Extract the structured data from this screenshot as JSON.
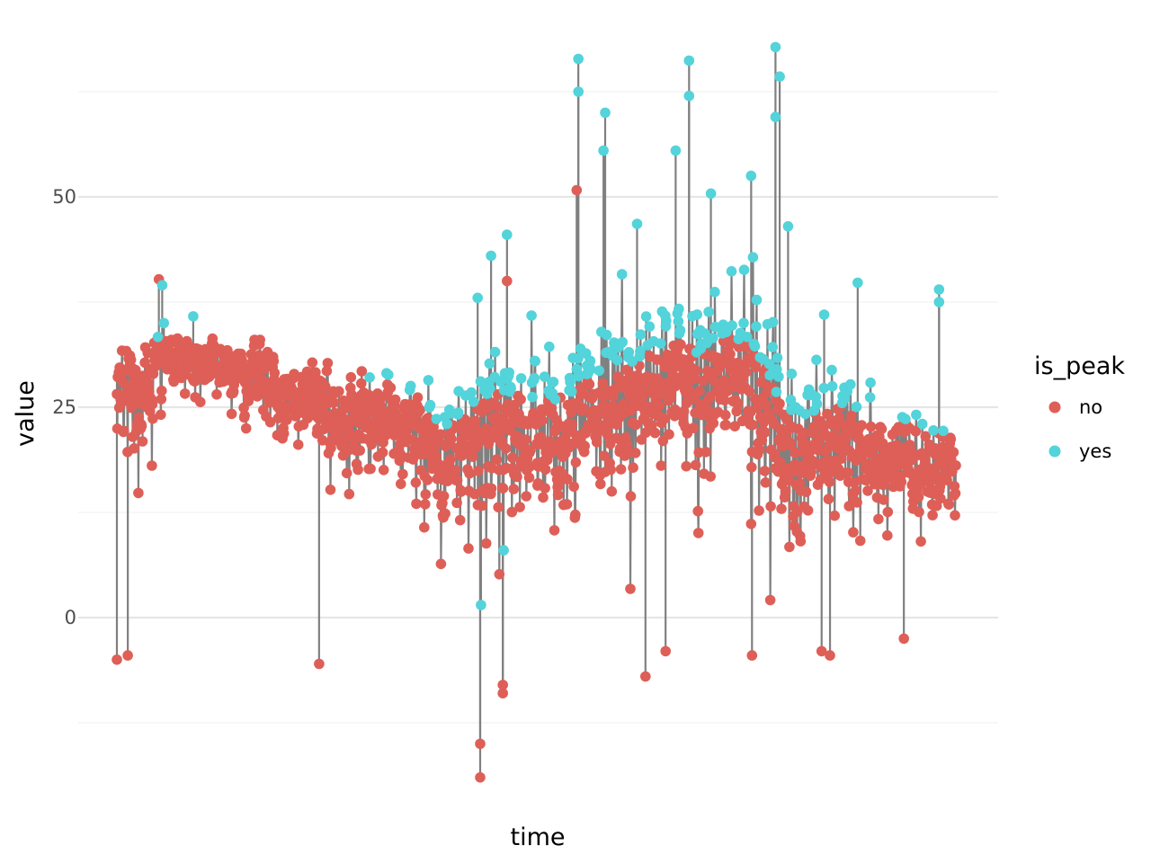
{
  "chart_data": {
    "type": "line+scatter",
    "title": "",
    "xlabel": "time",
    "ylabel": "value",
    "ylim": [
      -25,
      70
    ],
    "y_ticks": [
      0,
      25,
      50
    ],
    "y_tick_labels": [
      "0",
      "25",
      "50"
    ],
    "x_tick_labels": [],
    "grid": true,
    "legend": {
      "title": "is_peak",
      "placement": "right",
      "entries": [
        {
          "label": "no",
          "color": "#DE5F57"
        },
        {
          "label": "yes",
          "color": "#53D3DA"
        }
      ]
    },
    "line_color": "#808080",
    "series": [
      {
        "name": "value",
        "x_extent": [
          0,
          1
        ],
        "trend": [
          [
            0.0,
            28,
            14
          ],
          [
            0.03,
            27,
            14
          ],
          [
            0.05,
            31,
            4
          ],
          [
            0.12,
            30,
            5
          ],
          [
            0.2,
            27,
            6
          ],
          [
            0.3,
            24,
            7
          ],
          [
            0.36,
            22,
            8
          ],
          [
            0.4,
            19,
            11
          ],
          [
            0.43,
            21,
            11
          ],
          [
            0.5,
            22,
            10
          ],
          [
            0.55,
            24,
            11
          ],
          [
            0.6,
            27,
            12
          ],
          [
            0.63,
            27,
            13
          ],
          [
            0.68,
            30,
            12
          ],
          [
            0.72,
            31,
            12
          ],
          [
            0.76,
            27,
            14
          ],
          [
            0.8,
            18,
            15
          ],
          [
            0.85,
            21,
            11
          ],
          [
            0.9,
            19,
            8
          ],
          [
            1.0,
            18,
            7
          ]
        ],
        "spikes": [
          {
            "x": 0.05,
            "value": 40.2,
            "is_peak": "no"
          },
          {
            "x": 0.054,
            "value": 39.5,
            "is_peak": "yes"
          },
          {
            "x": 0.056,
            "value": 35,
            "is_peak": "yes"
          },
          {
            "x": 0.091,
            "value": 35.8,
            "is_peak": "yes"
          },
          {
            "x": 0.43,
            "value": 38,
            "is_peak": "yes"
          },
          {
            "x": 0.446,
            "value": 43,
            "is_peak": "yes"
          },
          {
            "x": 0.465,
            "value": 45.5,
            "is_peak": "yes"
          },
          {
            "x": 0.465,
            "value": 40,
            "is_peak": "no"
          },
          {
            "x": 0.55,
            "value": 66.4,
            "is_peak": "yes"
          },
          {
            "x": 0.55,
            "value": 62.5,
            "is_peak": "yes"
          },
          {
            "x": 0.548,
            "value": 50.8,
            "is_peak": "no"
          },
          {
            "x": 0.582,
            "value": 60,
            "is_peak": "yes"
          },
          {
            "x": 0.58,
            "value": 55.5,
            "is_peak": "yes"
          },
          {
            "x": 0.62,
            "value": 46.8,
            "is_peak": "yes"
          },
          {
            "x": 0.666,
            "value": 55.5,
            "is_peak": "yes"
          },
          {
            "x": 0.682,
            "value": 66.2,
            "is_peak": "yes"
          },
          {
            "x": 0.682,
            "value": 62,
            "is_peak": "yes"
          },
          {
            "x": 0.708,
            "value": 50.4,
            "is_peak": "yes"
          },
          {
            "x": 0.756,
            "value": 52.5,
            "is_peak": "yes"
          },
          {
            "x": 0.785,
            "value": 67.8,
            "is_peak": "yes"
          },
          {
            "x": 0.79,
            "value": 64.3,
            "is_peak": "yes"
          },
          {
            "x": 0.785,
            "value": 59.5,
            "is_peak": "yes"
          },
          {
            "x": 0.8,
            "value": 46.5,
            "is_peak": "yes"
          },
          {
            "x": 0.843,
            "value": 36,
            "is_peak": "yes"
          },
          {
            "x": 0.883,
            "value": 39.8,
            "is_peak": "yes"
          },
          {
            "x": 0.98,
            "value": 39,
            "is_peak": "yes"
          },
          {
            "x": 0.98,
            "value": 37.5,
            "is_peak": "yes"
          },
          {
            "x": 0.433,
            "value": -19,
            "is_peak": "no"
          },
          {
            "x": 0.433,
            "value": -15,
            "is_peak": "no"
          },
          {
            "x": 0.46,
            "value": -9,
            "is_peak": "no"
          },
          {
            "x": 0.46,
            "value": -8,
            "is_peak": "no"
          },
          {
            "x": 0.0,
            "value": -5,
            "is_peak": "no"
          },
          {
            "x": 0.013,
            "value": -4.5,
            "is_peak": "no"
          },
          {
            "x": 0.241,
            "value": -5.5,
            "is_peak": "no"
          },
          {
            "x": 0.63,
            "value": -7,
            "is_peak": "no"
          },
          {
            "x": 0.654,
            "value": -4,
            "is_peak": "no"
          },
          {
            "x": 0.757,
            "value": -4.5,
            "is_peak": "no"
          },
          {
            "x": 0.84,
            "value": -4,
            "is_peak": "no"
          },
          {
            "x": 0.85,
            "value": -4.5,
            "is_peak": "no"
          },
          {
            "x": 0.938,
            "value": -2.5,
            "is_peak": "no"
          },
          {
            "x": 0.461,
            "value": 8,
            "is_peak": "yes"
          },
          {
            "x": 0.434,
            "value": 1.5,
            "is_peak": "yes"
          }
        ]
      }
    ]
  }
}
